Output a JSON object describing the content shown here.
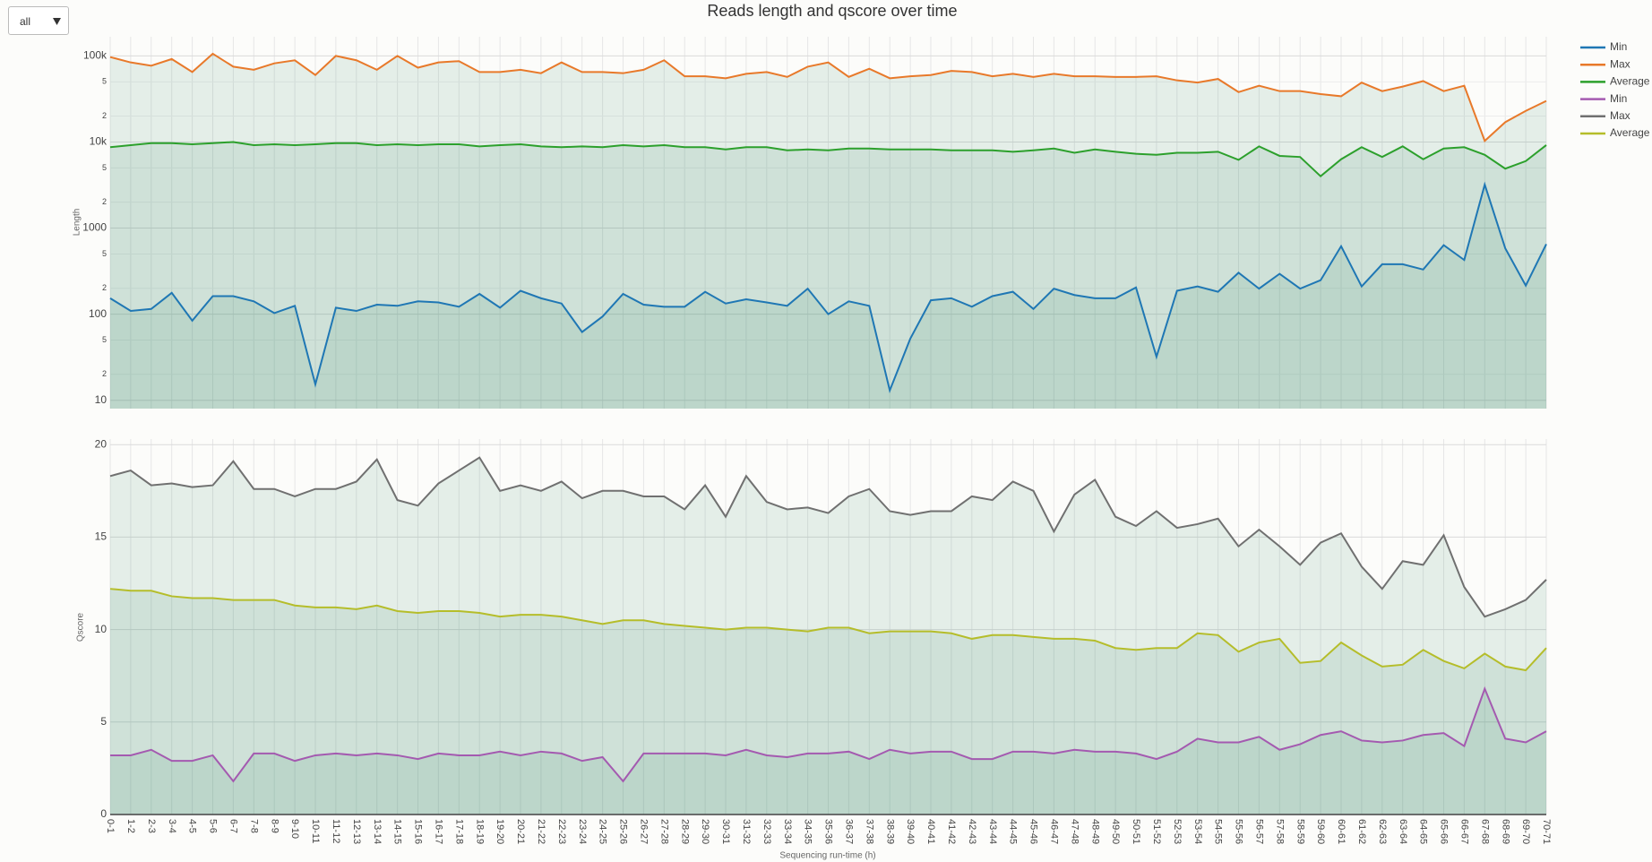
{
  "controls": {
    "filter": "all"
  },
  "chart_data": [
    {
      "type": "line",
      "title": "Reads length and qscore over time",
      "ylabel": "Length",
      "yscale": "log",
      "grid": true,
      "legend": "right",
      "area": true,
      "ylim": [
        8,
        167000
      ],
      "yticks": [
        10,
        {
          "value": 20,
          "label": "2"
        },
        {
          "value": 50,
          "label": "5"
        },
        100,
        {
          "value": 200,
          "label": "2"
        },
        {
          "value": 500,
          "label": "5"
        },
        1000,
        {
          "value": 2000,
          "label": "2"
        },
        {
          "value": 5000,
          "label": "5"
        },
        {
          "value": 10000,
          "label": "10k"
        },
        {
          "value": 20000,
          "label": "2"
        },
        {
          "value": 50000,
          "label": "5"
        },
        {
          "value": 100000,
          "label": "100k"
        }
      ],
      "series": [
        {
          "name": "Min",
          "color": "#1f77b4",
          "values": [
            153,
            109,
            115,
            177,
            84,
            162,
            162,
            141,
            103,
            125,
            15.3,
            119,
            109,
            129,
            125,
            141,
            137,
            122,
            172,
            119,
            187,
            153,
            133,
            62,
            94,
            172,
            129,
            122,
            122,
            182,
            133,
            149,
            137,
            125,
            198,
            100,
            141,
            125,
            13,
            52,
            145,
            153,
            122,
            162,
            182,
            115,
            198,
            167,
            153,
            153,
            204,
            32,
            187,
            210,
            182,
            303,
            198,
            294,
            198,
            248,
            616,
            210,
            380,
            380,
            330,
            634,
            426,
            3200,
            583,
            215,
            652
          ]
        },
        {
          "name": "Max",
          "color": "#e8792a",
          "values": [
            97000,
            84000,
            77000,
            92000,
            65000,
            106000,
            75000,
            69000,
            82000,
            89000,
            60000,
            100000,
            89000,
            69000,
            100000,
            73000,
            84000,
            87000,
            65000,
            65000,
            69000,
            63000,
            84000,
            65000,
            65000,
            63000,
            69000,
            89000,
            58000,
            58000,
            55000,
            62000,
            65000,
            57000,
            75000,
            84000,
            57000,
            71000,
            55000,
            58000,
            60000,
            67000,
            65000,
            58000,
            62000,
            57000,
            62000,
            58000,
            58000,
            57000,
            57000,
            58000,
            52000,
            49000,
            54000,
            38000,
            45000,
            39000,
            39000,
            36000,
            34000,
            49000,
            39000,
            44000,
            51000,
            39000,
            45000,
            10300,
            17000,
            23000,
            30000
          ]
        },
        {
          "name": "Average",
          "color": "#2ca02c",
          "values": [
            8700,
            9200,
            9700,
            9700,
            9400,
            9700,
            10000,
            9200,
            9400,
            9200,
            9400,
            9700,
            9700,
            9200,
            9400,
            9200,
            9400,
            9400,
            8900,
            9200,
            9400,
            8900,
            8700,
            8900,
            8700,
            9200,
            8900,
            9200,
            8700,
            8700,
            8200,
            8700,
            8700,
            8000,
            8200,
            8000,
            8400,
            8400,
            8200,
            8200,
            8200,
            8000,
            8000,
            8000,
            7700,
            8000,
            8400,
            7500,
            8200,
            7700,
            7300,
            7100,
            7500,
            7500,
            7700,
            6200,
            8900,
            6900,
            6700,
            4000,
            6300,
            8700,
            6700,
            8900,
            6300,
            8400,
            8700,
            7100,
            4900,
            6000,
            9200
          ]
        }
      ]
    },
    {
      "type": "line",
      "ylabel": "Qscore",
      "xlabel": "Sequencing run-time (h)",
      "grid": true,
      "legend": "right",
      "area": true,
      "categories": [
        "0-1",
        "1-2",
        "2-3",
        "3-4",
        "4-5",
        "5-6",
        "6-7",
        "7-8",
        "8-9",
        "9-10",
        "10-11",
        "11-12",
        "12-13",
        "13-14",
        "14-15",
        "15-16",
        "16-17",
        "17-18",
        "18-19",
        "19-20",
        "20-21",
        "21-22",
        "22-23",
        "23-24",
        "24-25",
        "25-26",
        "26-27",
        "27-28",
        "28-29",
        "29-30",
        "30-31",
        "31-32",
        "32-33",
        "33-34",
        "34-35",
        "35-36",
        "36-37",
        "37-38",
        "38-39",
        "39-40",
        "40-41",
        "41-42",
        "42-43",
        "43-44",
        "44-45",
        "45-46",
        "46-47",
        "47-48",
        "48-49",
        "49-50",
        "50-51",
        "51-52",
        "52-53",
        "53-54",
        "54-55",
        "55-56",
        "56-57",
        "57-58",
        "58-59",
        "59-60",
        "60-61",
        "61-62",
        "62-63",
        "63-64",
        "64-65",
        "65-66",
        "66-67",
        "67-68",
        "68-69",
        "69-70",
        "70-71"
      ],
      "ylim": [
        0,
        20.3
      ],
      "yticks": [
        0,
        5,
        10,
        15,
        20
      ],
      "series": [
        {
          "name": "Min",
          "color": "#a45ab0",
          "values": [
            3.2,
            3.2,
            3.5,
            2.9,
            2.9,
            3.2,
            1.8,
            3.3,
            3.3,
            2.9,
            3.2,
            3.3,
            3.2,
            3.3,
            3.2,
            3.0,
            3.3,
            3.2,
            3.2,
            3.4,
            3.2,
            3.4,
            3.3,
            2.9,
            3.1,
            1.8,
            3.3,
            3.3,
            3.3,
            3.3,
            3.2,
            3.5,
            3.2,
            3.1,
            3.3,
            3.3,
            3.4,
            3.0,
            3.5,
            3.3,
            3.4,
            3.4,
            3.0,
            3.0,
            3.4,
            3.4,
            3.3,
            3.5,
            3.4,
            3.4,
            3.3,
            3.0,
            3.4,
            4.1,
            3.9,
            3.9,
            4.2,
            3.5,
            3.8,
            4.3,
            4.5,
            4.0,
            3.9,
            4.0,
            4.3,
            4.4,
            3.7,
            6.8,
            4.1,
            3.9,
            4.5
          ]
        },
        {
          "name": "Max",
          "color": "#707070",
          "values": [
            18.3,
            18.6,
            17.8,
            17.9,
            17.7,
            17.8,
            19.1,
            17.6,
            17.6,
            17.2,
            17.6,
            17.6,
            18.0,
            19.2,
            17.0,
            16.7,
            17.9,
            18.6,
            19.3,
            17.5,
            17.8,
            17.5,
            18.0,
            17.1,
            17.5,
            17.5,
            17.2,
            17.2,
            16.5,
            17.8,
            16.1,
            18.3,
            16.9,
            16.5,
            16.6,
            16.3,
            17.2,
            17.6,
            16.4,
            16.2,
            16.4,
            16.4,
            17.2,
            17.0,
            18.0,
            17.5,
            15.3,
            17.3,
            18.1,
            16.1,
            15.6,
            16.4,
            15.5,
            15.7,
            16.0,
            14.5,
            15.4,
            14.5,
            13.5,
            14.7,
            15.2,
            13.4,
            12.2,
            13.7,
            13.5,
            15.1,
            12.3,
            10.7,
            11.1,
            11.6,
            12.7
          ]
        },
        {
          "name": "Average",
          "color": "#b5bd2a",
          "values": [
            12.2,
            12.1,
            12.1,
            11.8,
            11.7,
            11.7,
            11.6,
            11.6,
            11.6,
            11.3,
            11.2,
            11.2,
            11.1,
            11.3,
            11.0,
            10.9,
            11.0,
            11.0,
            10.9,
            10.7,
            10.8,
            10.8,
            10.7,
            10.5,
            10.3,
            10.5,
            10.5,
            10.3,
            10.2,
            10.1,
            10.0,
            10.1,
            10.1,
            10.0,
            9.9,
            10.1,
            10.1,
            9.8,
            9.9,
            9.9,
            9.9,
            9.8,
            9.5,
            9.7,
            9.7,
            9.6,
            9.5,
            9.5,
            9.4,
            9.0,
            8.9,
            9.0,
            9.0,
            9.8,
            9.7,
            8.8,
            9.3,
            9.5,
            8.2,
            8.3,
            9.3,
            8.6,
            8.0,
            8.1,
            8.9,
            8.3,
            7.9,
            8.7,
            8.0,
            7.8,
            9.0
          ]
        }
      ]
    }
  ]
}
